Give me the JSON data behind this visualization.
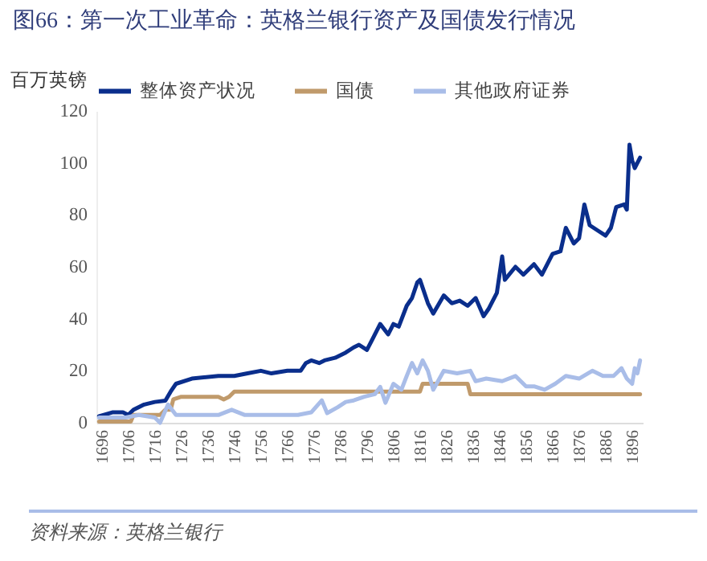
{
  "chart_data": {
    "type": "line",
    "title": "图66：第一次工业革命：英格兰银行资产及国债发行情况",
    "ylabel": "百万英镑",
    "annotations": [
      "资料来源：英格兰银行"
    ],
    "xlim": [
      1694,
      1900
    ],
    "xticks": [
      1696,
      1706,
      1716,
      1726,
      1736,
      1746,
      1756,
      1766,
      1776,
      1786,
      1796,
      1806,
      1816,
      1826,
      1836,
      1846,
      1856,
      1866,
      1876,
      1886,
      1896
    ],
    "ylim": [
      0,
      120
    ],
    "yticks": [
      0,
      20,
      40,
      60,
      80,
      100,
      120
    ],
    "grid": false,
    "legend": "top",
    "line_style": "solid",
    "marker": "none",
    "series": [
      {
        "name": "整体资产状况",
        "color": "#0a2e8c",
        "x": [
          1695,
          1700,
          1704,
          1706,
          1708,
          1712,
          1716,
          1720,
          1722,
          1724,
          1730,
          1740,
          1746,
          1751,
          1756,
          1760,
          1766,
          1771,
          1773,
          1775,
          1778,
          1780,
          1784,
          1788,
          1791,
          1793,
          1796,
          1798,
          1801,
          1804,
          1806,
          1808,
          1811,
          1813,
          1815,
          1816,
          1819,
          1821,
          1825,
          1828,
          1831,
          1834,
          1837,
          1840,
          1842,
          1845,
          1847,
          1848,
          1852,
          1855,
          1859,
          1862,
          1866,
          1869,
          1871,
          1874,
          1876,
          1878,
          1880,
          1883,
          1886,
          1888,
          1890,
          1893,
          1894,
          1895,
          1896,
          1897,
          1899
        ],
        "values": [
          2.5,
          4,
          4,
          3,
          5,
          7,
          8,
          8.5,
          12,
          15,
          17,
          18,
          18,
          19,
          20,
          19,
          20,
          20,
          23,
          24,
          23,
          24,
          25,
          27,
          29,
          30,
          28,
          32,
          38,
          34,
          38,
          37,
          45,
          48,
          54,
          55,
          46,
          42,
          49,
          46,
          47,
          45,
          48,
          41,
          44,
          50,
          64,
          55,
          60,
          57,
          61,
          57,
          65,
          66,
          75,
          69,
          71,
          84,
          76,
          74,
          72,
          75,
          83,
          84,
          82,
          107,
          101,
          98,
          102
        ]
      },
      {
        "name": "国债",
        "color": "#c09a6b",
        "x": [
          1695,
          1707,
          1708,
          1718,
          1720,
          1722,
          1723,
          1726,
          1740,
          1742,
          1744,
          1746,
          1816,
          1817,
          1834,
          1835,
          1899
        ],
        "values": [
          0.5,
          0.5,
          3,
          3,
          5,
          5,
          9,
          10,
          10,
          9,
          10,
          12,
          12,
          15,
          15,
          11,
          11
        ]
      },
      {
        "name": "其他政府证券",
        "color": "#a9bde8",
        "x": [
          1695,
          1705,
          1710,
          1716,
          1718,
          1721,
          1724,
          1730,
          1740,
          1745,
          1750,
          1760,
          1770,
          1775,
          1779,
          1781,
          1785,
          1788,
          1791,
          1795,
          1799,
          1801,
          1803,
          1806,
          1809,
          1811,
          1813,
          1815,
          1817,
          1819,
          1821,
          1825,
          1830,
          1835,
          1837,
          1841,
          1847,
          1852,
          1856,
          1859,
          1863,
          1867,
          1871,
          1876,
          1881,
          1885,
          1889,
          1892,
          1894,
          1896,
          1897,
          1898,
          1899
        ],
        "values": [
          2,
          2,
          3,
          2,
          0,
          7,
          3,
          3,
          3,
          5,
          3,
          3,
          3,
          4,
          8.6,
          3.7,
          6,
          8,
          8.6,
          10,
          11,
          13.8,
          7.7,
          15,
          12.7,
          18,
          23,
          19,
          24,
          20,
          12.7,
          20,
          19,
          20,
          16,
          17,
          16,
          18,
          14,
          14,
          12.7,
          15,
          18,
          17,
          20,
          18,
          18,
          21,
          17,
          15,
          21,
          19,
          24
        ]
      }
    ]
  }
}
